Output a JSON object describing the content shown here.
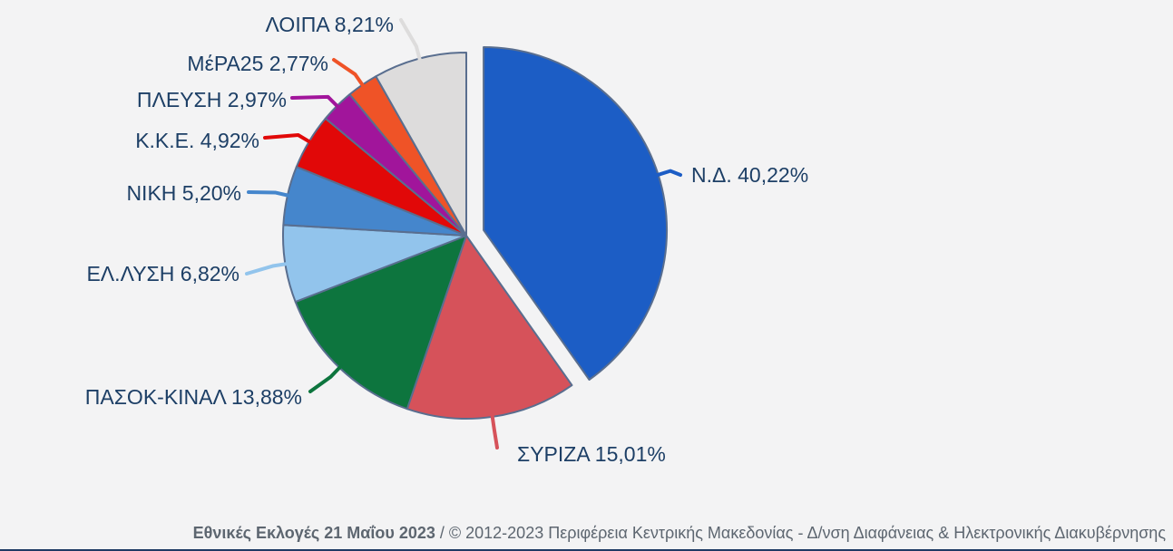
{
  "chart_data": {
    "type": "pie",
    "slices": [
      {
        "label": "Ν.Δ.",
        "value": 40.22,
        "value_text": "40,22%",
        "color": "#1c5dc5",
        "exploded": true
      },
      {
        "label": "ΣΥΡΙΖΑ",
        "value": 15.01,
        "value_text": "15,01%",
        "color": "#d6525a"
      },
      {
        "label": "ΠΑΣΟΚ-ΚΙΝΑΛ",
        "value": 13.88,
        "value_text": "13,88%",
        "color": "#0d753e"
      },
      {
        "label": "ΕΛ.ΛΥΣΗ",
        "value": 6.82,
        "value_text": "6,82%",
        "color": "#92c4ec"
      },
      {
        "label": "ΝΙΚΗ",
        "value": 5.2,
        "value_text": "5,20%",
        "color": "#4586cc"
      },
      {
        "label": "Κ.Κ.Ε.",
        "value": 4.92,
        "value_text": "4,92%",
        "color": "#e10808"
      },
      {
        "label": "ΠΛΕΥΣΗ",
        "value": 2.97,
        "value_text": "2,97%",
        "color": "#a1159b"
      },
      {
        "label": "ΜέΡΑ25",
        "value": 2.77,
        "value_text": "2,77%",
        "color": "#ef5327"
      },
      {
        "label": "ΛΟΙΠΑ",
        "value": 8.21,
        "value_text": "8,21%",
        "color": "#dddcdc"
      }
    ],
    "start_angle": "12 o'clock",
    "direction": "clockwise",
    "legend": "none",
    "slice_border_color": "#596e8f",
    "label_color": "#1d3f66"
  },
  "footer": {
    "title": "Εθνικές Εκλογές 21 Μαΐου 2023",
    "separator": " / ",
    "credit": "© 2012-2023 Περιφέρεια Κεντρικής Μακεδονίας - Δ/νση Διαφάνειας & Ηλεκτρονικής Διακυβέρνησης",
    "rule_color": "#1e3a64"
  }
}
